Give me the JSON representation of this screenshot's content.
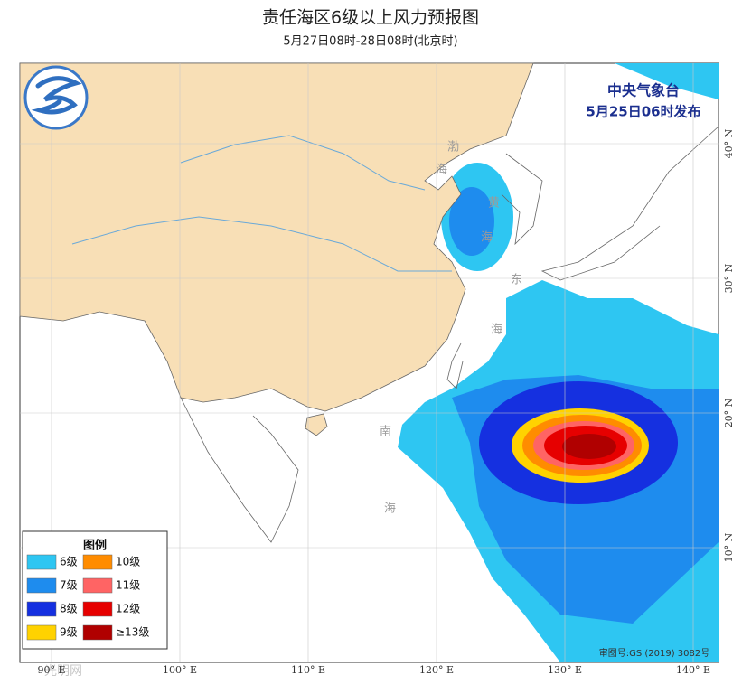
{
  "title": "责任海区6级以上风力预报图",
  "subtitle": "5月27日08时-28日08时(北京时)",
  "issuer": "中央气象台",
  "issue_time": "5月25日06时发布",
  "approval_number": "审图号:GS (2019) 3082号",
  "watermark": "光明网",
  "sea_labels": [
    "渤",
    "海",
    "黄",
    "海",
    "东",
    "海",
    "南",
    "海"
  ],
  "legend": {
    "title": "图例",
    "items": [
      {
        "label": "6级",
        "color": "#2ec6f2"
      },
      {
        "label": "7级",
        "color": "#1e8cee"
      },
      {
        "label": "8级",
        "color": "#1530e0"
      },
      {
        "label": "9级",
        "color": "#ffd200"
      },
      {
        "label": "10级",
        "color": "#ff8c00"
      },
      {
        "label": "11级",
        "color": "#ff6464"
      },
      {
        "label": "12级",
        "color": "#e60000"
      },
      {
        "label": "≥13级",
        "color": "#b00000"
      }
    ]
  },
  "lon_ticks": [
    {
      "value": 90,
      "label": "90° E"
    },
    {
      "value": 100,
      "label": "100° E"
    },
    {
      "value": 110,
      "label": "110° E"
    },
    {
      "value": 120,
      "label": "120° E"
    },
    {
      "value": 130,
      "label": "130° E"
    },
    {
      "value": 140,
      "label": "140° E"
    }
  ],
  "lat_ticks": [
    {
      "value": 10,
      "label": "10° N"
    },
    {
      "value": 20,
      "label": "20° N"
    },
    {
      "value": 30,
      "label": "30° N"
    },
    {
      "value": 40,
      "label": "40° N"
    }
  ]
}
